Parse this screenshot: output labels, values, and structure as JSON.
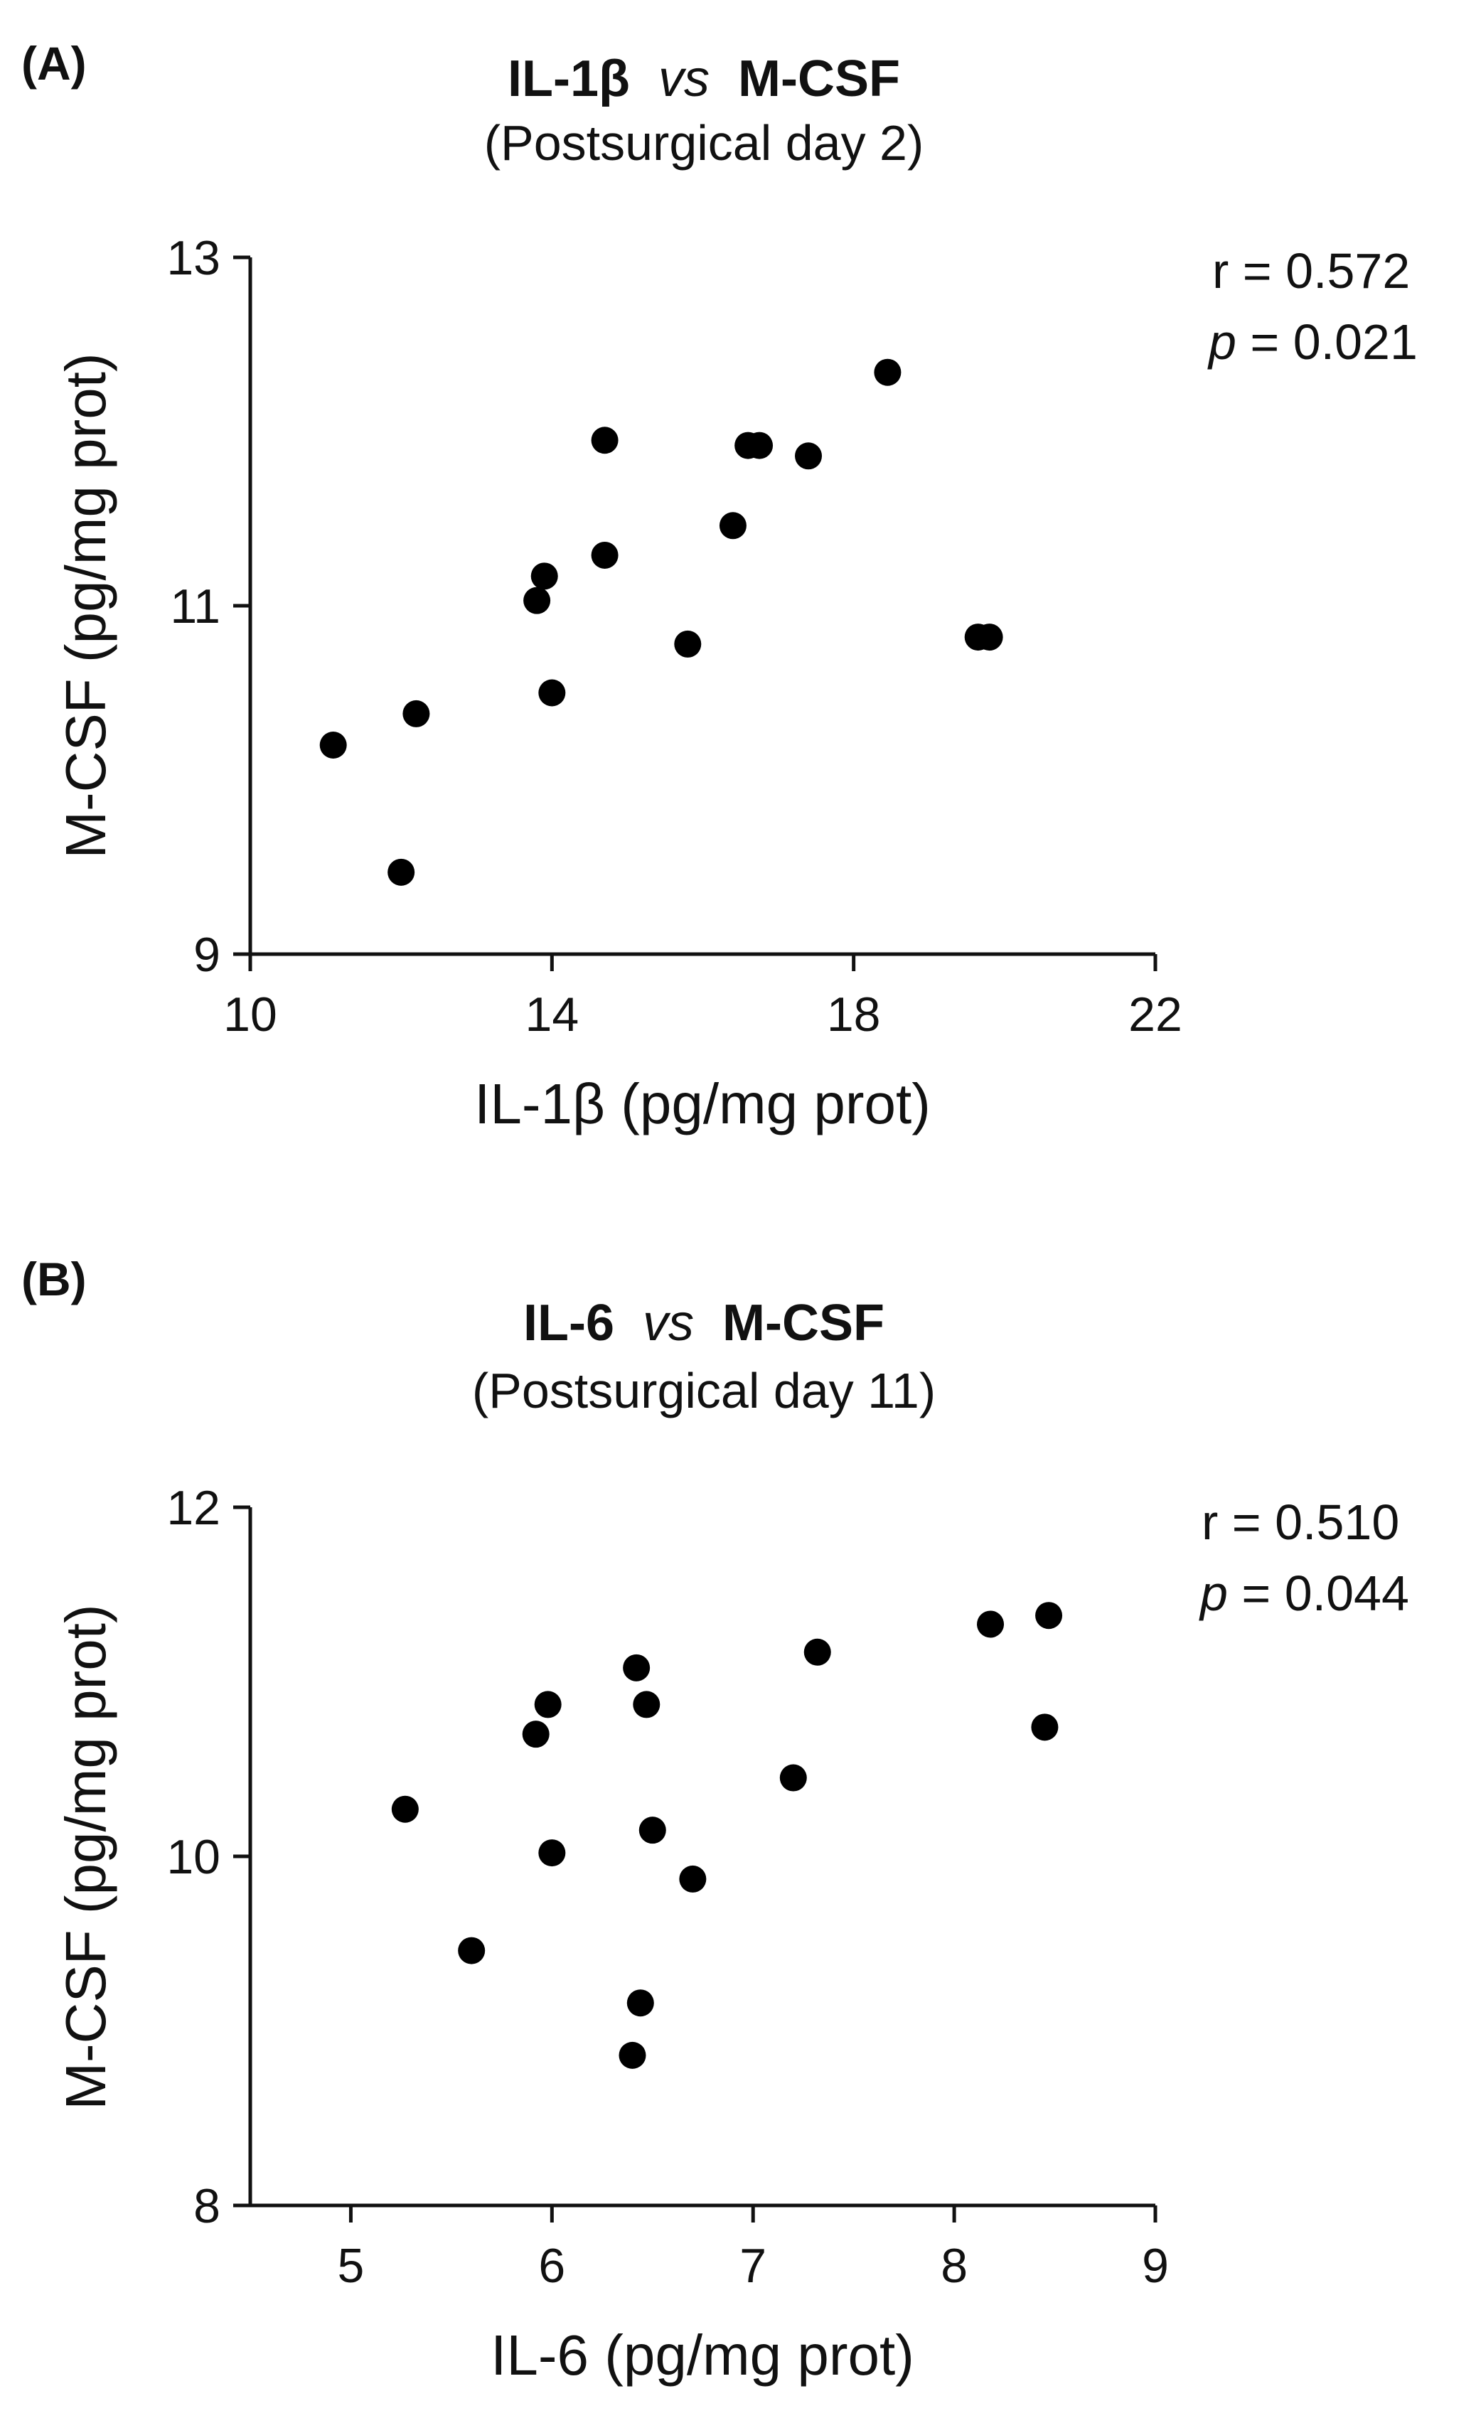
{
  "chart_data": [
    {
      "type": "scatter",
      "panel_label": "(A)",
      "title": {
        "part1": "IL-1β",
        "italic": "vs",
        "part2": "M-CSF"
      },
      "subtitle": "(Postsurgical day 2)",
      "xlabel": "IL-1β (pg/mg prot)",
      "ylabel": "M-CSF (pg/mg prot)",
      "xlim": [
        10,
        22
      ],
      "ylim": [
        9,
        13
      ],
      "xticks": [
        10,
        14,
        18,
        22
      ],
      "yticks": [
        9,
        11,
        13
      ],
      "x": [
        11.1,
        12.0,
        12.2,
        13.8,
        13.9,
        14.0,
        14.7,
        14.7,
        15.8,
        16.4,
        16.6,
        16.75,
        17.4,
        18.45,
        19.65,
        19.8
      ],
      "y": [
        10.2,
        9.47,
        10.38,
        11.03,
        11.17,
        10.5,
        11.95,
        11.29,
        10.78,
        11.46,
        11.92,
        11.92,
        11.86,
        12.34,
        10.82,
        10.82
      ],
      "annotation": {
        "r_label": "r = 0.572",
        "p_symbol": "p",
        "p_value": " = 0.021"
      }
    },
    {
      "type": "scatter",
      "panel_label": "(B)",
      "title": {
        "part1": "IL-6",
        "italic": "vs",
        "part2": "M-CSF"
      },
      "subtitle": "(Postsurgical day 11)",
      "xlabel": "IL-6 (pg/mg prot)",
      "ylabel": "M-CSF (pg/mg prot)",
      "xlim": [
        4.5,
        9
      ],
      "ylim": [
        8,
        12
      ],
      "xticks": [
        5,
        6,
        7,
        8,
        9
      ],
      "yticks": [
        8,
        10,
        12
      ],
      "x": [
        5.27,
        5.6,
        5.92,
        5.98,
        6.0,
        6.4,
        6.42,
        6.44,
        6.47,
        6.5,
        6.7,
        7.2,
        7.32,
        8.18,
        8.45,
        8.47
      ],
      "y": [
        10.27,
        9.46,
        10.7,
        10.87,
        10.02,
        8.86,
        11.08,
        9.16,
        10.87,
        10.15,
        9.87,
        10.45,
        11.17,
        11.33,
        10.74,
        11.38
      ],
      "annotation": {
        "r_label": "r = 0.510",
        "p_symbol": "p",
        "p_value": " = 0.044"
      }
    }
  ]
}
